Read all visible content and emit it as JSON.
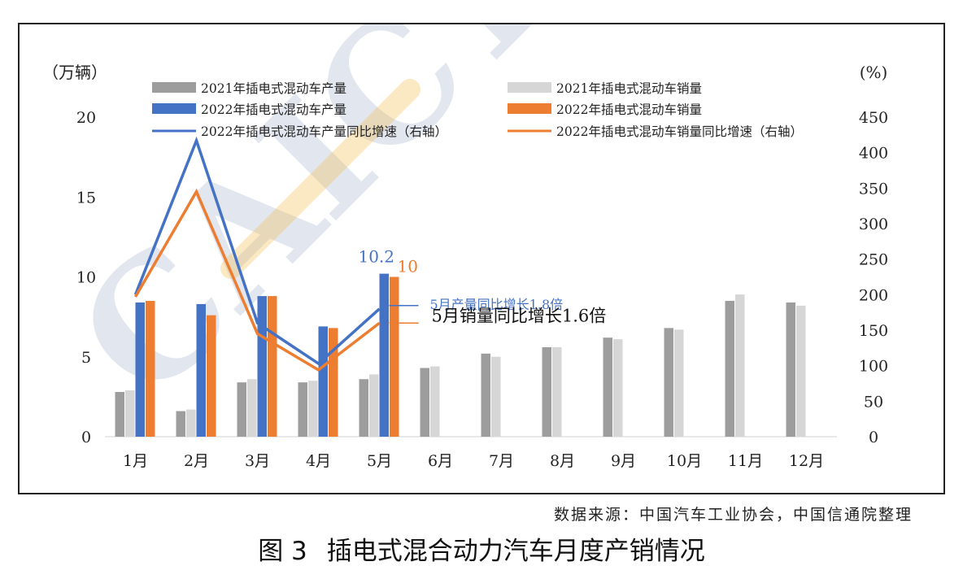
{
  "colors": {
    "prod2021": "#9d9d9d",
    "sales2021": "#d6d6d6",
    "prod2022": "#4472c4",
    "sales2022": "#ed7d31",
    "prodGrowth": "#4472c4",
    "salesGrowth": "#ed7d31",
    "watermarkBlue": "#7b8fb8",
    "watermarkOrange": "#f5c15a"
  },
  "watermark": "CAICT",
  "chart_data": {
    "type": "bar",
    "categories": [
      "1月",
      "2月",
      "3月",
      "4月",
      "5月",
      "6月",
      "7月",
      "8月",
      "9月",
      "10月",
      "11月",
      "12月"
    ],
    "left_axis": {
      "unit": "（万辆）",
      "ylim": [
        0,
        20
      ],
      "ticks": [
        0,
        5,
        10,
        15,
        20
      ]
    },
    "right_axis": {
      "unit": "(%)",
      "ylim": [
        0,
        450
      ],
      "ticks": [
        0,
        50,
        100,
        150,
        200,
        250,
        300,
        350,
        400,
        450
      ]
    },
    "grid": false,
    "series": [
      {
        "name": "2021年插电式混动车产量",
        "kind": "bar",
        "axis": "left",
        "color_key": "prod2021",
        "values": [
          2.8,
          1.6,
          3.4,
          3.4,
          3.6,
          4.3,
          5.2,
          5.6,
          6.2,
          6.8,
          8.5,
          8.4
        ]
      },
      {
        "name": "2021年插电式混动车销量",
        "kind": "bar",
        "axis": "left",
        "color_key": "sales2021",
        "values": [
          2.9,
          1.7,
          3.6,
          3.5,
          3.9,
          4.4,
          5.0,
          5.6,
          6.1,
          6.7,
          8.9,
          8.2
        ]
      },
      {
        "name": "2022年插电式混动车产量",
        "kind": "bar",
        "axis": "left",
        "color_key": "prod2022",
        "values": [
          8.4,
          8.3,
          8.8,
          6.9,
          10.2,
          null,
          null,
          null,
          null,
          null,
          null,
          null
        ]
      },
      {
        "name": "2022年插电式混动车销量",
        "kind": "bar",
        "axis": "left",
        "color_key": "sales2022",
        "values": [
          8.5,
          7.6,
          8.8,
          6.8,
          10,
          null,
          null,
          null,
          null,
          null,
          null,
          null
        ]
      },
      {
        "name": "2022年插电式混动车产量同比增速（右轴）",
        "kind": "line",
        "axis": "right",
        "color_key": "prodGrowth",
        "values": [
          200,
          417,
          160,
          103,
          180,
          null,
          null,
          null,
          null,
          null,
          null,
          null
        ]
      },
      {
        "name": "2022年插电式混动车销量同比增速（右轴）",
        "kind": "line",
        "axis": "right",
        "color_key": "salesGrowth",
        "values": [
          197,
          345,
          145,
          94,
          160,
          null,
          null,
          null,
          null,
          null,
          null,
          null
        ]
      }
    ],
    "data_labels": [
      {
        "series": 2,
        "index": 4,
        "text": "10.2"
      },
      {
        "series": 3,
        "index": 4,
        "text": "10"
      }
    ],
    "annotations": [
      {
        "text": "5月产量同比增长1.8倍",
        "series": 4,
        "index": 4,
        "color_key": "prodGrowth"
      },
      {
        "text": "5月销量同比增长1.6倍",
        "series": 5,
        "index": 4,
        "color_key": "salesGrowth"
      }
    ],
    "legend_position": "top"
  },
  "source": "数据来源：中国汽车工业协会，中国信通院整理",
  "caption": {
    "number": "图 3",
    "title": "插电式混合动力汽车月度产销情况"
  }
}
